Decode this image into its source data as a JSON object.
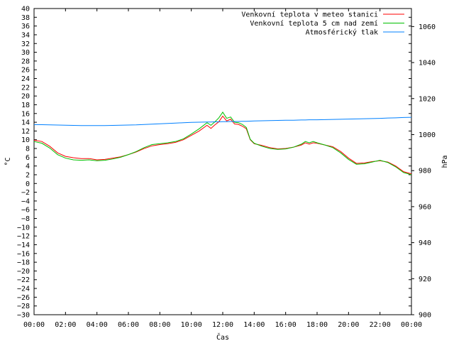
{
  "chart_data": {
    "type": "line",
    "title": "",
    "xlabel": "Čas",
    "ylabel": "°C",
    "y2label": "hPa",
    "ylim": [
      -30,
      40
    ],
    "y2lim": [
      900,
      1070
    ],
    "xlim": [
      "00:00",
      "24:00"
    ],
    "yticks": [
      -30,
      -28,
      -26,
      -24,
      -22,
      -20,
      -18,
      -16,
      -14,
      -12,
      -10,
      -8,
      -6,
      -4,
      -2,
      0,
      2,
      4,
      6,
      8,
      10,
      12,
      14,
      16,
      18,
      20,
      22,
      24,
      26,
      28,
      30,
      32,
      34,
      36,
      38,
      40
    ],
    "y2ticks": [
      900,
      920,
      940,
      960,
      980,
      1000,
      1020,
      1040,
      1060
    ],
    "xtick_labels": [
      "00:00",
      "02:00",
      "04:00",
      "06:00",
      "08:00",
      "10:00",
      "12:00",
      "14:00",
      "16:00",
      "18:00",
      "20:00",
      "22:00",
      "00:00"
    ],
    "x_hours": [
      0,
      0.5,
      1,
      1.5,
      2,
      2.5,
      3,
      3.5,
      4,
      4.5,
      5,
      5.5,
      6,
      6.5,
      7,
      7.5,
      8,
      8.5,
      9,
      9.5,
      10,
      10.5,
      11,
      11.25,
      11.5,
      11.75,
      12,
      12.25,
      12.5,
      12.75,
      13,
      13.25,
      13.5,
      13.75,
      14,
      14.5,
      15,
      15.5,
      16,
      16.5,
      17,
      17.25,
      17.5,
      17.75,
      18,
      18.5,
      19,
      19.5,
      20,
      20.5,
      21,
      21.5,
      22,
      22.5,
      23,
      23.5,
      24
    ],
    "legend_position": "top-right",
    "series": [
      {
        "name": "Venkovní teplota v meteo stanici",
        "color": "#ff0000",
        "axis": "left",
        "values": [
          9.9,
          9.6,
          8.5,
          7.0,
          6.2,
          5.9,
          5.7,
          5.7,
          5.4,
          5.5,
          5.8,
          6.1,
          6.6,
          7.2,
          8.0,
          8.6,
          8.9,
          9.1,
          9.4,
          10.0,
          11.0,
          12.0,
          13.3,
          12.6,
          13.4,
          14.1,
          15.4,
          14.3,
          14.7,
          13.6,
          13.5,
          13.1,
          12.5,
          10.0,
          9.1,
          8.7,
          8.2,
          7.9,
          8.0,
          8.3,
          8.8,
          9.3,
          9.0,
          9.3,
          9.2,
          8.8,
          8.4,
          7.3,
          5.8,
          4.6,
          4.7,
          5.0,
          5.2,
          4.9,
          4.0,
          2.7,
          2.2
        ]
      },
      {
        "name": "Venkovní teplota 5 cm nad zemí",
        "color": "#00c000",
        "axis": "left",
        "values": [
          9.6,
          9.2,
          8.1,
          6.6,
          5.8,
          5.4,
          5.3,
          5.4,
          5.2,
          5.3,
          5.6,
          6.0,
          6.6,
          7.3,
          8.2,
          8.9,
          9.1,
          9.3,
          9.6,
          10.2,
          11.3,
          12.5,
          13.9,
          13.3,
          14.1,
          15.0,
          16.3,
          14.9,
          15.2,
          14.0,
          13.9,
          13.5,
          12.8,
          10.1,
          9.2,
          8.5,
          8.0,
          7.8,
          7.9,
          8.3,
          9.0,
          9.6,
          9.3,
          9.6,
          9.3,
          8.8,
          8.2,
          7.0,
          5.5,
          4.4,
          4.5,
          4.9,
          5.3,
          4.8,
          3.8,
          2.5,
          2.0
        ]
      },
      {
        "name": "Atmosférický tlak",
        "color": "#0080ff",
        "axis": "right",
        "values": [
          1005.5,
          1005.5,
          1005.4,
          1005.3,
          1005.2,
          1005.1,
          1005.0,
          1005.0,
          1005.0,
          1005.0,
          1005.1,
          1005.2,
          1005.3,
          1005.4,
          1005.6,
          1005.8,
          1006.0,
          1006.2,
          1006.4,
          1006.6,
          1006.8,
          1006.9,
          1007.0,
          1007.0,
          1007.1,
          1007.1,
          1007.2,
          1007.2,
          1007.3,
          1007.3,
          1007.3,
          1007.4,
          1007.4,
          1007.5,
          1007.6,
          1007.7,
          1007.8,
          1007.9,
          1008.0,
          1008.0,
          1008.1,
          1008.1,
          1008.2,
          1008.2,
          1008.2,
          1008.3,
          1008.4,
          1008.5,
          1008.6,
          1008.7,
          1008.8,
          1008.9,
          1009.0,
          1009.2,
          1009.3,
          1009.5,
          1009.6
        ]
      }
    ]
  }
}
